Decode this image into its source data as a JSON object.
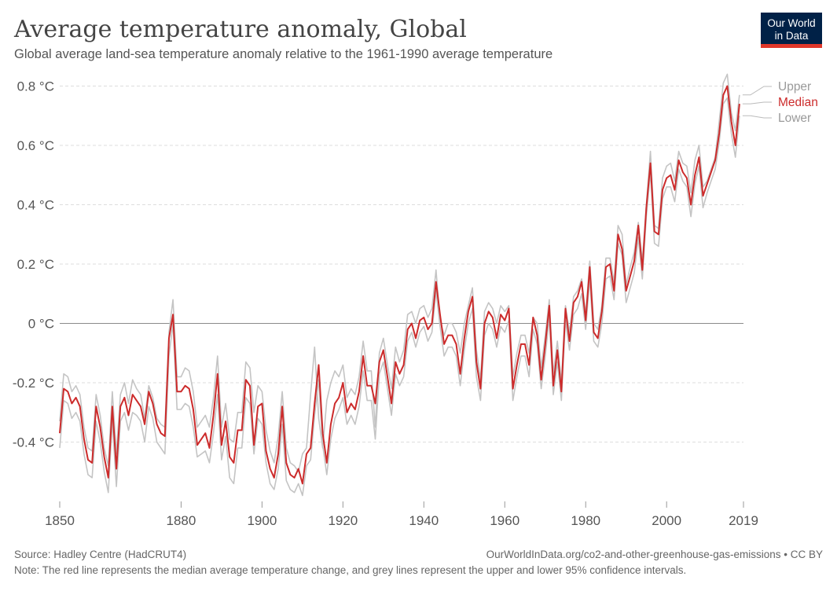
{
  "title": "Average temperature anomaly, Global",
  "subtitle": "Global average land-sea temperature anomaly relative to the 1961-1990 average temperature",
  "logo": {
    "line1": "Our World",
    "line2": "in Data",
    "bg_color": "#002147",
    "accent_color": "#e0372a"
  },
  "footer": {
    "source": "Source: Hadley Centre (HadCRUT4)",
    "url": "OurWorldInData.org/co2-and-other-greenhouse-gas-emissions • CC BY",
    "note": "Note: The red line represents the median average temperature change, and grey lines represent the upper and lower 95% confidence intervals."
  },
  "chart_data": {
    "type": "line",
    "x_start": 1850,
    "x_end": 2019,
    "xlim": [
      1850,
      2019
    ],
    "ylim": [
      -0.6,
      0.85
    ],
    "x_ticks": [
      {
        "value": 1850,
        "label": "1850"
      },
      {
        "value": 1880,
        "label": "1880"
      },
      {
        "value": 1900,
        "label": "1900"
      },
      {
        "value": 1920,
        "label": "1920"
      },
      {
        "value": 1940,
        "label": "1940"
      },
      {
        "value": 1960,
        "label": "1960"
      },
      {
        "value": 1980,
        "label": "1980"
      },
      {
        "value": 2000,
        "label": "2000"
      },
      {
        "value": 2019,
        "label": "2019"
      }
    ],
    "y_ticks": [
      {
        "value": 0.8,
        "label": "0.8 °C"
      },
      {
        "value": 0.6,
        "label": "0.6 °C"
      },
      {
        "value": 0.4,
        "label": "0.4 °C"
      },
      {
        "value": 0.2,
        "label": "0.2 °C"
      },
      {
        "value": 0,
        "label": "0 °C"
      },
      {
        "value": -0.2,
        "label": "-0.2 °C"
      },
      {
        "value": -0.4,
        "label": "-0.4 °C"
      }
    ],
    "grid": "horizontal dashed",
    "legend_placement": "right",
    "series": [
      {
        "name": "Upper",
        "color": "#c4c4c4",
        "values": [
          -0.33,
          -0.17,
          -0.18,
          -0.23,
          -0.21,
          -0.24,
          -0.35,
          -0.42,
          -0.43,
          -0.24,
          -0.31,
          -0.42,
          -0.48,
          -0.23,
          -0.44,
          -0.24,
          -0.2,
          -0.27,
          -0.19,
          -0.22,
          -0.24,
          -0.32,
          -0.21,
          -0.25,
          -0.32,
          -0.34,
          -0.35,
          -0.03,
          0.08,
          -0.18,
          -0.18,
          -0.15,
          -0.16,
          -0.23,
          -0.35,
          -0.33,
          -0.31,
          -0.35,
          -0.25,
          -0.11,
          -0.35,
          -0.27,
          -0.39,
          -0.4,
          -0.3,
          -0.3,
          -0.13,
          -0.15,
          -0.3,
          -0.21,
          -0.23,
          -0.36,
          -0.43,
          -0.47,
          -0.38,
          -0.23,
          -0.42,
          -0.47,
          -0.48,
          -0.5,
          -0.44,
          -0.42,
          -0.24,
          -0.08,
          -0.32,
          -0.42,
          -0.26,
          -0.2,
          -0.16,
          -0.18,
          -0.14,
          -0.25,
          -0.22,
          -0.24,
          -0.18,
          -0.06,
          -0.16,
          -0.16,
          -0.35,
          -0.1,
          -0.05,
          -0.14,
          -0.22,
          -0.08,
          -0.13,
          -0.09,
          0.03,
          0.04,
          0.0,
          0.05,
          0.06,
          0.02,
          0.05,
          0.18,
          0.01,
          -0.04,
          0.0,
          0.0,
          -0.03,
          -0.1,
          0.0,
          0.06,
          0.12,
          -0.09,
          -0.19,
          0.04,
          0.07,
          0.05,
          0.0,
          0.06,
          0.04,
          0.06,
          -0.18,
          -0.1,
          -0.04,
          -0.04,
          -0.1,
          0.02,
          0.0,
          -0.15,
          -0.04,
          0.08,
          -0.17,
          -0.06,
          -0.2,
          0.06,
          -0.03,
          0.09,
          0.11,
          0.15,
          0.03,
          0.21,
          0.0,
          -0.02,
          0.06,
          0.22,
          0.22,
          0.14,
          0.33,
          0.3,
          0.13,
          0.19,
          0.24,
          0.34,
          0.21,
          0.4,
          0.58,
          0.33,
          0.32,
          0.49,
          0.53,
          0.54,
          0.48,
          0.58,
          0.54,
          0.53,
          0.44,
          0.55,
          0.6,
          0.46,
          0.48,
          0.52,
          0.56,
          0.68,
          0.81,
          0.84,
          0.71,
          0.65,
          0.77
        ]
      },
      {
        "name": "Median",
        "color": "#cc2b2b",
        "values": [
          -0.37,
          -0.22,
          -0.23,
          -0.27,
          -0.25,
          -0.28,
          -0.39,
          -0.46,
          -0.47,
          -0.28,
          -0.35,
          -0.45,
          -0.52,
          -0.28,
          -0.49,
          -0.28,
          -0.25,
          -0.31,
          -0.24,
          -0.26,
          -0.28,
          -0.34,
          -0.23,
          -0.27,
          -0.34,
          -0.37,
          -0.38,
          -0.05,
          0.03,
          -0.23,
          -0.23,
          -0.21,
          -0.22,
          -0.29,
          -0.41,
          -0.39,
          -0.37,
          -0.42,
          -0.31,
          -0.17,
          -0.41,
          -0.33,
          -0.45,
          -0.47,
          -0.36,
          -0.36,
          -0.19,
          -0.21,
          -0.41,
          -0.28,
          -0.27,
          -0.43,
          -0.49,
          -0.52,
          -0.44,
          -0.28,
          -0.47,
          -0.51,
          -0.52,
          -0.49,
          -0.54,
          -0.44,
          -0.42,
          -0.27,
          -0.14,
          -0.37,
          -0.47,
          -0.34,
          -0.27,
          -0.25,
          -0.2,
          -0.3,
          -0.27,
          -0.29,
          -0.23,
          -0.11,
          -0.21,
          -0.21,
          -0.27,
          -0.13,
          -0.09,
          -0.18,
          -0.27,
          -0.13,
          -0.17,
          -0.14,
          -0.02,
          0.0,
          -0.05,
          0.01,
          0.02,
          -0.02,
          0.0,
          0.14,
          0.03,
          -0.07,
          -0.04,
          -0.04,
          -0.07,
          -0.17,
          -0.05,
          0.04,
          0.09,
          -0.13,
          -0.22,
          0.0,
          0.04,
          0.02,
          -0.05,
          0.03,
          0.01,
          0.05,
          -0.22,
          -0.14,
          -0.07,
          -0.07,
          -0.14,
          0.02,
          -0.04,
          -0.19,
          -0.07,
          0.06,
          -0.21,
          -0.09,
          -0.23,
          0.05,
          -0.06,
          0.07,
          0.09,
          0.14,
          0.01,
          0.19,
          -0.03,
          -0.05,
          0.04,
          0.19,
          0.2,
          0.11,
          0.3,
          0.25,
          0.11,
          0.16,
          0.21,
          0.33,
          0.18,
          0.39,
          0.54,
          0.31,
          0.3,
          0.45,
          0.49,
          0.5,
          0.45,
          0.55,
          0.51,
          0.49,
          0.4,
          0.5,
          0.56,
          0.43,
          0.47,
          0.51,
          0.55,
          0.64,
          0.77,
          0.8,
          0.68,
          0.6,
          0.74
        ]
      },
      {
        "name": "Lower",
        "color": "#c4c4c4",
        "values": [
          -0.42,
          -0.26,
          -0.27,
          -0.32,
          -0.3,
          -0.33,
          -0.44,
          -0.51,
          -0.52,
          -0.33,
          -0.4,
          -0.5,
          -0.57,
          -0.33,
          -0.55,
          -0.33,
          -0.3,
          -0.36,
          -0.3,
          -0.31,
          -0.33,
          -0.4,
          -0.28,
          -0.32,
          -0.4,
          -0.42,
          -0.44,
          -0.11,
          0.0,
          -0.29,
          -0.29,
          -0.27,
          -0.28,
          -0.35,
          -0.45,
          -0.44,
          -0.43,
          -0.47,
          -0.37,
          -0.24,
          -0.46,
          -0.38,
          -0.52,
          -0.54,
          -0.42,
          -0.42,
          -0.25,
          -0.27,
          -0.44,
          -0.32,
          -0.34,
          -0.47,
          -0.54,
          -0.56,
          -0.49,
          -0.34,
          -0.53,
          -0.56,
          -0.57,
          -0.54,
          -0.58,
          -0.48,
          -0.46,
          -0.31,
          -0.19,
          -0.41,
          -0.51,
          -0.39,
          -0.32,
          -0.29,
          -0.25,
          -0.34,
          -0.31,
          -0.34,
          -0.28,
          -0.16,
          -0.26,
          -0.26,
          -0.39,
          -0.17,
          -0.13,
          -0.22,
          -0.31,
          -0.17,
          -0.21,
          -0.18,
          -0.06,
          -0.03,
          -0.08,
          -0.03,
          -0.01,
          -0.06,
          -0.03,
          0.11,
          -0.01,
          -0.11,
          -0.08,
          -0.08,
          -0.11,
          -0.21,
          -0.09,
          0.0,
          0.05,
          -0.18,
          -0.26,
          -0.04,
          0.0,
          -0.02,
          -0.08,
          -0.01,
          -0.03,
          0.01,
          -0.26,
          -0.18,
          -0.11,
          -0.11,
          -0.18,
          -0.02,
          -0.07,
          -0.22,
          -0.11,
          0.02,
          -0.24,
          -0.13,
          -0.26,
          0.01,
          -0.09,
          0.03,
          0.05,
          0.1,
          -0.02,
          0.15,
          -0.06,
          -0.08,
          0.0,
          0.15,
          0.16,
          0.08,
          0.27,
          0.23,
          0.07,
          0.12,
          0.17,
          0.29,
          0.15,
          0.36,
          0.51,
          0.27,
          0.26,
          0.42,
          0.46,
          0.46,
          0.41,
          0.52,
          0.48,
          0.46,
          0.36,
          0.47,
          0.53,
          0.39,
          0.44,
          0.48,
          0.52,
          0.61,
          0.74,
          0.76,
          0.64,
          0.56,
          0.7
        ]
      }
    ]
  }
}
